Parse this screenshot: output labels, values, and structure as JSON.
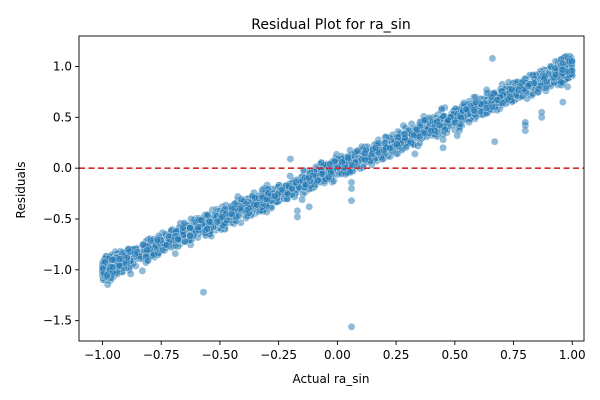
{
  "chart_data": {
    "type": "scatter",
    "title": "Residual Plot for ra_sin",
    "xlabel": "Actual ra_sin",
    "ylabel": "Residuals",
    "xlim": [
      -1.1,
      1.05
    ],
    "ylim": [
      -1.7,
      1.3
    ],
    "xticks": [
      -1.0,
      -0.75,
      -0.5,
      -0.25,
      0.0,
      0.25,
      0.5,
      0.75,
      1.0
    ],
    "xtick_labels": [
      "−1.00",
      "−0.75",
      "−0.50",
      "−0.25",
      "0.00",
      "0.25",
      "0.50",
      "0.75",
      "1.00"
    ],
    "yticks": [
      -1.5,
      -1.0,
      -0.5,
      0.0,
      0.5,
      1.0
    ],
    "ytick_labels": [
      "−1.5",
      "−1.0",
      "−0.5",
      "0.0",
      "0.5",
      "1.0"
    ],
    "grid": false,
    "reference_line": {
      "y": 0.0,
      "style": "dashed",
      "color": "#d62728"
    },
    "point_color": "#1f77b4",
    "point_alpha": 0.5,
    "main_trend": {
      "x_range": [
        -1.0,
        1.0
      ],
      "slope": 1.0,
      "intercept": 0.0,
      "spread": 0.11
    },
    "outliers": [
      {
        "x": -0.57,
        "y": -1.22
      },
      {
        "x": 0.06,
        "y": -1.56
      },
      {
        "x": -0.17,
        "y": -0.42
      },
      {
        "x": -0.17,
        "y": -0.48
      },
      {
        "x": -0.15,
        "y": -0.31
      },
      {
        "x": -0.12,
        "y": -0.38
      },
      {
        "x": -0.2,
        "y": 0.09
      },
      {
        "x": 0.06,
        "y": -0.14
      },
      {
        "x": 0.06,
        "y": -0.2
      },
      {
        "x": 0.06,
        "y": -0.32
      },
      {
        "x": 0.33,
        "y": 0.14
      },
      {
        "x": 0.45,
        "y": 0.2
      },
      {
        "x": 0.45,
        "y": 0.28
      },
      {
        "x": 0.45,
        "y": 0.33
      },
      {
        "x": 0.52,
        "y": 0.37
      },
      {
        "x": 0.51,
        "y": 0.32
      },
      {
        "x": 0.67,
        "y": 0.26
      },
      {
        "x": 0.66,
        "y": 1.08
      },
      {
        "x": 0.8,
        "y": 0.37
      },
      {
        "x": 0.8,
        "y": 0.42
      },
      {
        "x": 0.8,
        "y": 0.45
      },
      {
        "x": 0.87,
        "y": 0.5
      },
      {
        "x": 0.87,
        "y": 0.55
      },
      {
        "x": 0.96,
        "y": 0.65
      },
      {
        "x": 0.98,
        "y": 0.8
      },
      {
        "x": -0.88,
        "y": -1.04
      },
      {
        "x": -0.83,
        "y": -1.01
      },
      {
        "x": -0.69,
        "y": -0.84
      }
    ]
  }
}
